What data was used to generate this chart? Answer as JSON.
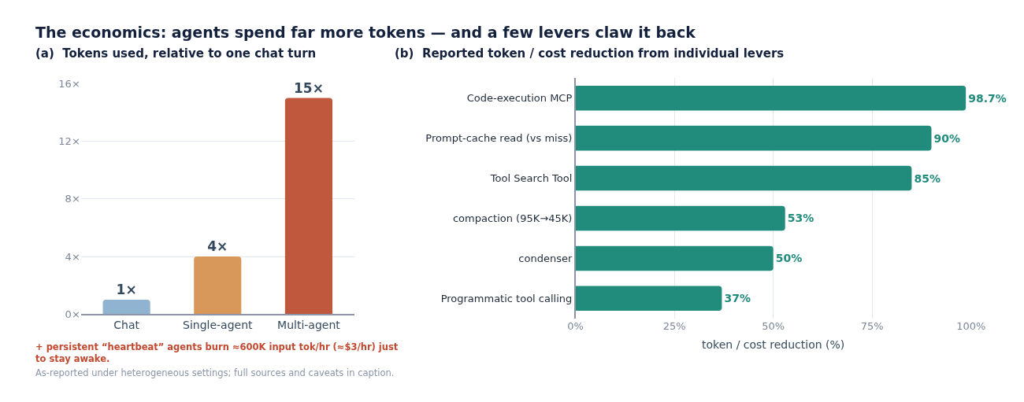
{
  "chart_data": [
    {
      "type": "bar",
      "title": "The economics: agents spend far more tokens — and a few levers claw it back",
      "subtitle": "(a)  Tokens used, relative to one chat turn",
      "categories": [
        "Chat",
        "Single-agent",
        "Multi-agent"
      ],
      "values": [
        1,
        4,
        15
      ],
      "colors": [
        "#8fb3d0",
        "#d8985a",
        "#bf583d"
      ],
      "value_labels": [
        "1×",
        "4×",
        "15×"
      ],
      "ylim": [
        0,
        16
      ],
      "yticks": [
        {
          "value": 0,
          "label": "0×"
        },
        {
          "value": 4,
          "label": "4×"
        },
        {
          "value": 8,
          "label": "8×"
        },
        {
          "value": 12,
          "label": "12×"
        },
        {
          "value": 16,
          "label": "16×"
        }
      ],
      "grid": "y",
      "annotations": [
        "+ persistent “heartbeat” agents burn ≈600K input tok/hr (≈$3/hr) just to stay awake.",
        "As-reported under heterogeneous settings; full sources and caveats in caption."
      ]
    },
    {
      "type": "bar",
      "orientation": "horizontal",
      "title": "(b)  Reported token / cost reduction from individual levers",
      "xlabel": "token / cost reduction (%)",
      "categories": [
        "Code-execution MCP",
        "Prompt-cache read (vs miss)",
        "Tool Search Tool",
        "compaction (95K→45K)",
        "condenser",
        "Programmatic tool calling"
      ],
      "values": [
        98.7,
        90,
        85,
        53,
        50,
        37
      ],
      "color": "#218b7c",
      "value_labels": [
        "98.7%",
        "90%",
        "85%",
        "53%",
        "50%",
        "37%"
      ],
      "xlim": [
        0,
        100
      ],
      "xticks": [
        {
          "value": 0,
          "label": "0%"
        },
        {
          "value": 25,
          "label": "25%"
        },
        {
          "value": 50,
          "label": "50%"
        },
        {
          "value": 75,
          "label": "75%"
        },
        {
          "value": 100,
          "label": "100%"
        }
      ],
      "grid": "x"
    }
  ]
}
